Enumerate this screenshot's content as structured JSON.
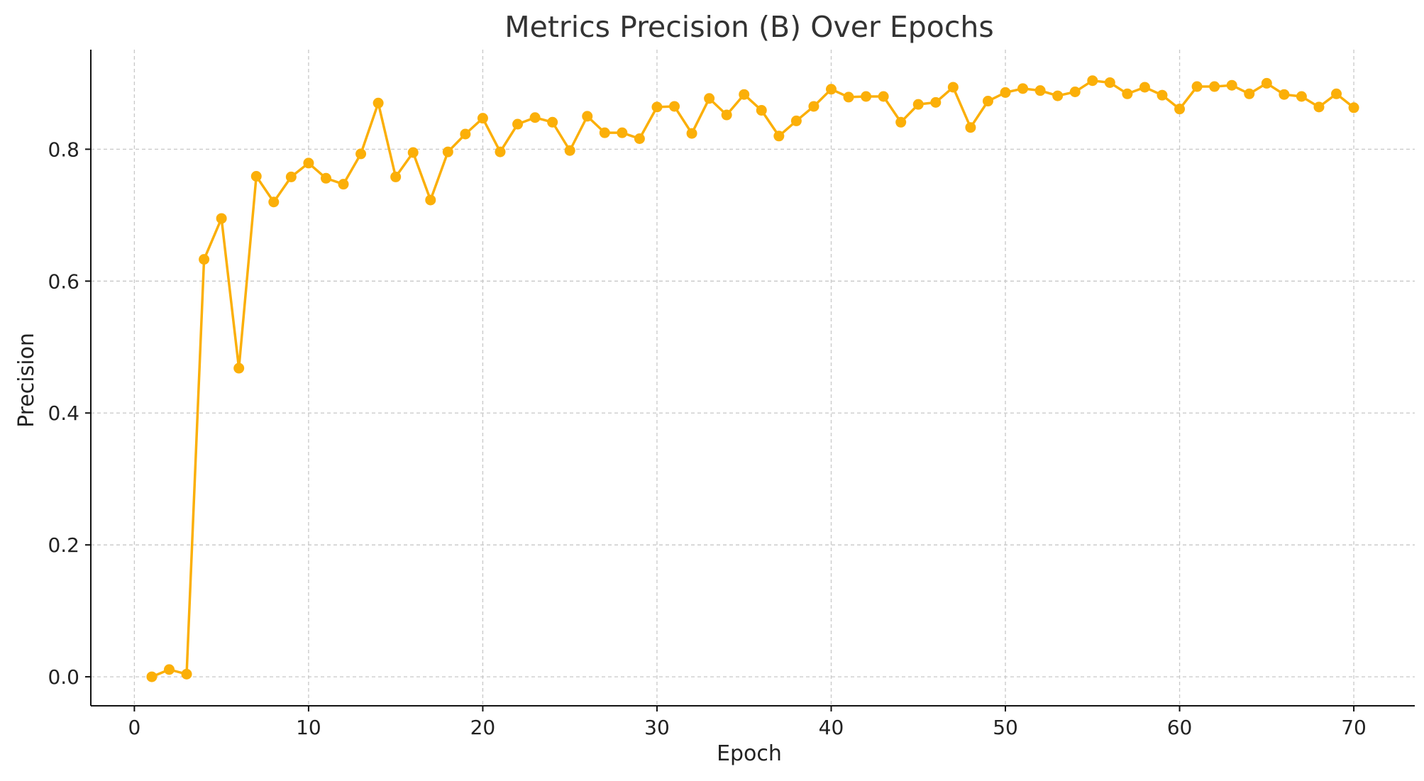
{
  "chart_data": {
    "type": "line",
    "title": "Metrics Precision (B) Over Epochs",
    "xlabel": "Epoch",
    "ylabel": "Precision",
    "xlim": [
      -2.5,
      73.5
    ],
    "ylim": [
      -0.044,
      0.951
    ],
    "xticks": [
      0,
      10,
      20,
      30,
      40,
      50,
      60,
      70
    ],
    "yticks": [
      0.0,
      0.2,
      0.4,
      0.6,
      0.8
    ],
    "ytick_labels": [
      "0.0",
      "0.2",
      "0.4",
      "0.6",
      "0.8"
    ],
    "grid": true,
    "color": "#fbaf08",
    "markers": true,
    "series": [
      {
        "x": [
          1,
          2,
          3,
          4,
          5,
          6,
          7,
          8,
          9,
          10,
          11,
          12,
          13,
          14,
          15,
          16,
          17,
          18,
          19,
          20,
          21,
          22,
          23,
          24,
          25,
          26,
          27,
          28,
          29,
          30,
          31,
          32,
          33,
          34,
          35,
          36,
          37,
          38,
          39,
          40,
          41,
          42,
          43,
          44,
          45,
          46,
          47,
          48,
          49,
          50,
          51,
          52,
          53,
          54,
          55,
          56,
          57,
          58,
          59,
          60,
          61,
          62,
          63,
          64,
          65,
          66,
          67,
          68,
          69,
          70
        ],
        "values": [
          0.0,
          0.011,
          0.004,
          0.633,
          0.695,
          0.468,
          0.759,
          0.72,
          0.758,
          0.779,
          0.756,
          0.747,
          0.793,
          0.87,
          0.758,
          0.795,
          0.723,
          0.796,
          0.823,
          0.847,
          0.796,
          0.838,
          0.848,
          0.841,
          0.798,
          0.85,
          0.825,
          0.825,
          0.816,
          0.864,
          0.865,
          0.824,
          0.877,
          0.852,
          0.883,
          0.859,
          0.82,
          0.843,
          0.865,
          0.891,
          0.879,
          0.88,
          0.88,
          0.841,
          0.868,
          0.871,
          0.894,
          0.833,
          0.873,
          0.886,
          0.892,
          0.889,
          0.881,
          0.887,
          0.904,
          0.901,
          0.884,
          0.894,
          0.882,
          0.861,
          0.895,
          0.895,
          0.897,
          0.884,
          0.9,
          0.883,
          0.88,
          0.864,
          0.884,
          0.863
        ]
      }
    ]
  }
}
